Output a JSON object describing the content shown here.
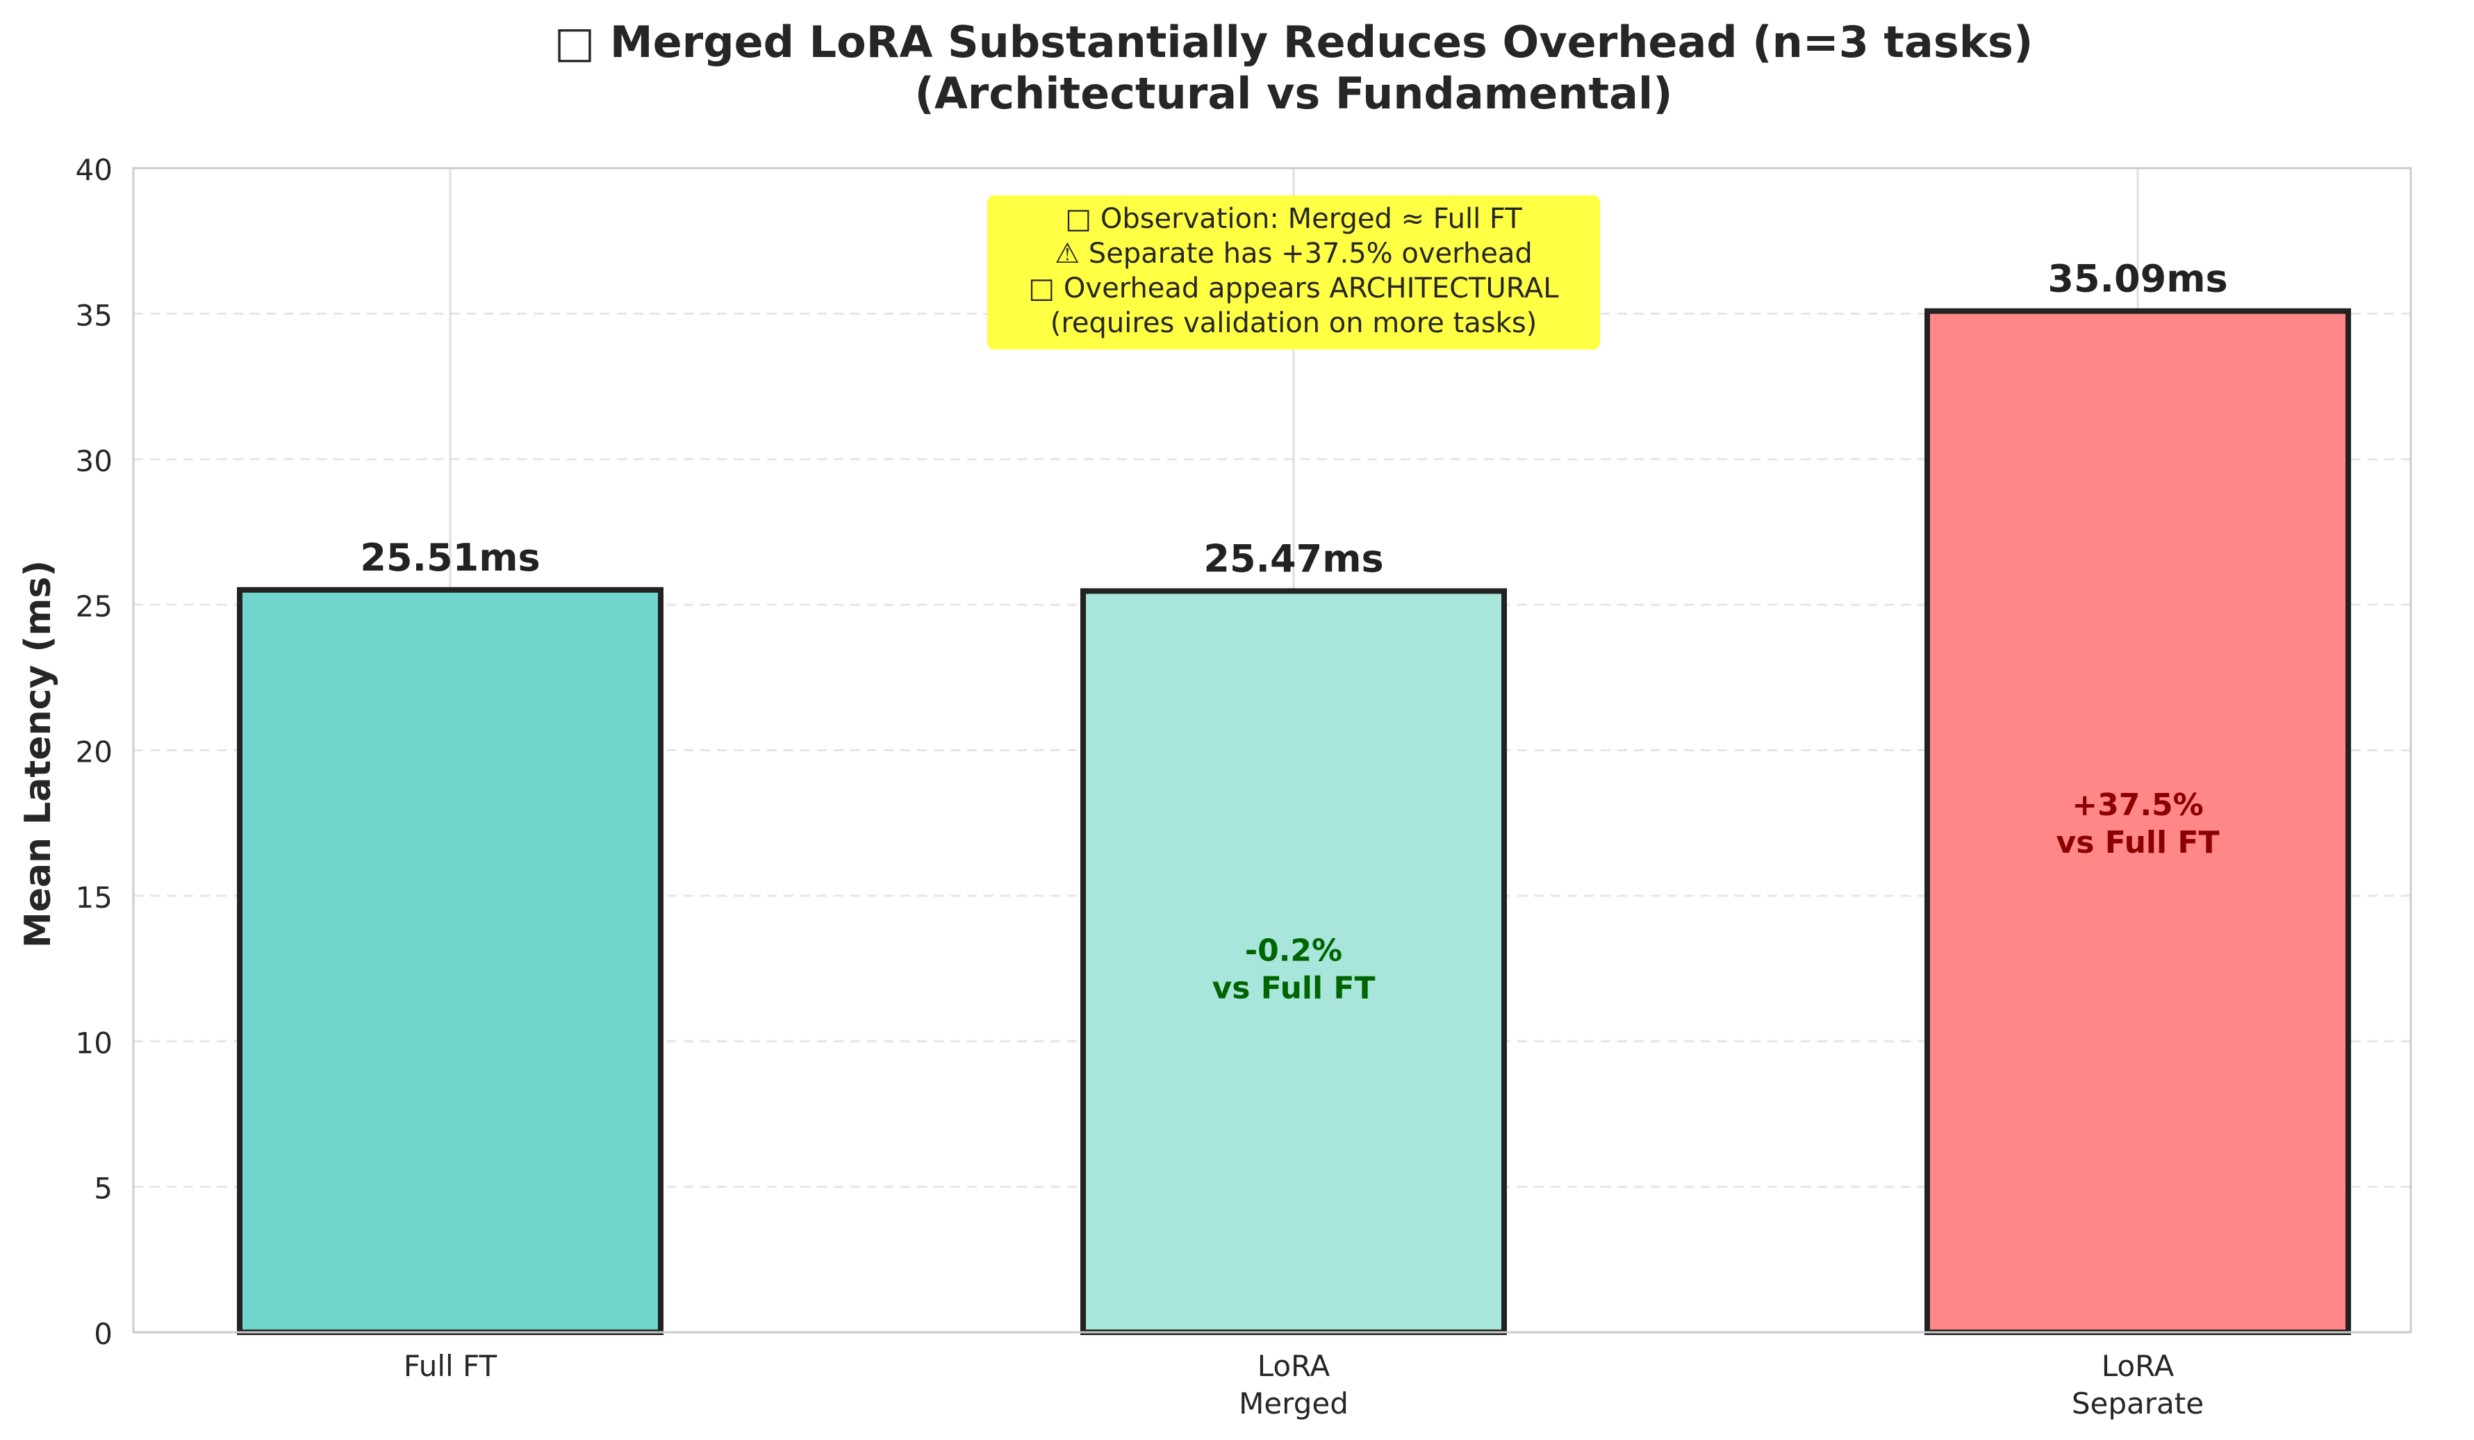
{
  "chart_data": {
    "type": "bar",
    "title_line1": "□ Merged LoRA Substantially Reduces Overhead (n=3 tasks)",
    "title_line2": "(Architectural vs Fundamental)",
    "ylabel": "Mean Latency (ms)",
    "xlabel": "",
    "ylim": [
      0,
      40
    ],
    "yticks": [
      0,
      5,
      10,
      15,
      20,
      25,
      30,
      35,
      40
    ],
    "grid": true,
    "categories": [
      [
        "Full FT"
      ],
      [
        "LoRA",
        "Merged"
      ],
      [
        "LoRA",
        "Separate"
      ]
    ],
    "values": [
      25.51,
      25.47,
      35.09
    ],
    "value_labels": [
      "25.51ms",
      "25.47ms",
      "35.09ms"
    ],
    "bar_colors": [
      "#72d6cf",
      "#a8e6db",
      "#ff8787"
    ],
    "annotations": [
      null,
      {
        "lines": [
          "-0.2%",
          "vs Full FT"
        ],
        "color": "#006400",
        "y": 12.5
      },
      {
        "lines": [
          "+37.5%",
          "vs Full FT"
        ],
        "color": "#8b0000",
        "y": 17.5
      }
    ],
    "note": {
      "lines": [
        "□ Observation: Merged ≈ Full FT",
        "⚠  Separate has +37.5% overhead",
        "□ Overhead appears ARCHITECTURAL",
        "(requires validation on more tasks)"
      ],
      "background": "#ffff44"
    }
  }
}
